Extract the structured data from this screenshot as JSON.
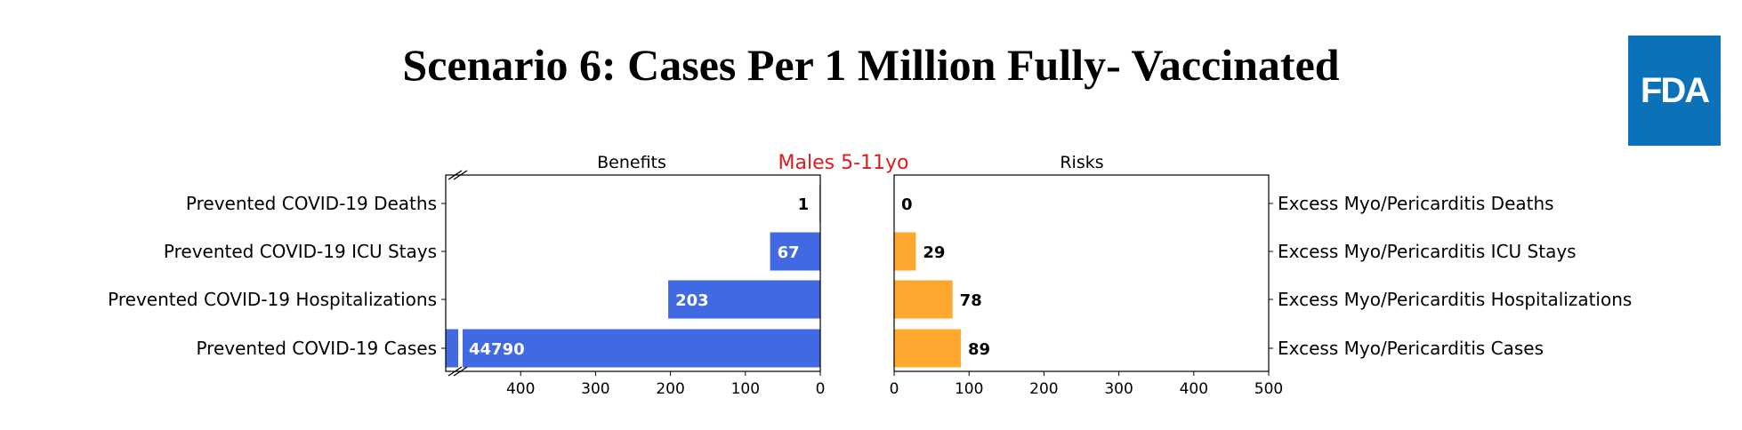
{
  "slide_title": "Scenario 6: Cases Per 1 Million Fully- Vaccinated",
  "logo_text": "FDA",
  "colors": {
    "benefits": "#4169e1",
    "risks": "#ffa72f",
    "subtitle": "#dd1c1c"
  },
  "chart_data": {
    "type": "bar",
    "orientation": "horizontal",
    "subtitle": "Males 5-11yo",
    "panels": [
      {
        "title": "Benefits",
        "direction": "reversed",
        "axis_break": true,
        "xlim": [
          0,
          500
        ],
        "ticks": [
          400,
          300,
          200,
          100,
          0
        ],
        "categories": [
          "Prevented COVID-19 Deaths",
          "Prevented COVID-19 ICU Stays",
          "Prevented COVID-19 Hospitalizations",
          "Prevented COVID-19 Cases"
        ],
        "values": [
          1,
          67,
          203,
          44790
        ],
        "color": "#4169e1"
      },
      {
        "title": "Risks",
        "direction": "normal",
        "axis_break": false,
        "xlim": [
          0,
          500
        ],
        "ticks": [
          0,
          100,
          200,
          300,
          400,
          500
        ],
        "categories": [
          "Excess Myo/Pericarditis Deaths",
          "Excess Myo/Pericarditis ICU Stays",
          "Excess Myo/Pericarditis Hospitalizations",
          "Excess Myo/Pericarditis Cases"
        ],
        "values": [
          0,
          29,
          78,
          89
        ],
        "color": "#ffa72f"
      }
    ]
  }
}
